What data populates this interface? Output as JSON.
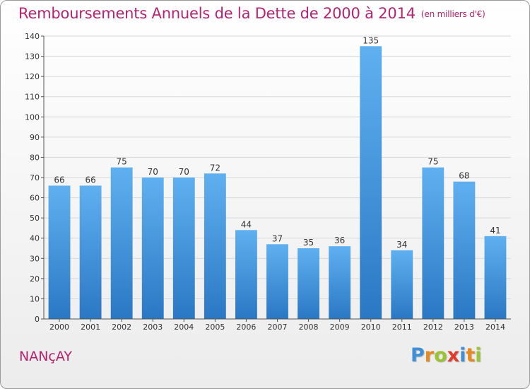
{
  "chart_data": {
    "type": "bar",
    "title": "Remboursements Annuels de la Dette de 2000 à 2014",
    "subtitle": "(en milliers d'€)",
    "categories": [
      "2000",
      "2001",
      "2002",
      "2003",
      "2004",
      "2005",
      "2006",
      "2007",
      "2008",
      "2009",
      "2010",
      "2011",
      "2012",
      "2013",
      "2014"
    ],
    "values": [
      66,
      66,
      75,
      70,
      70,
      72,
      44,
      37,
      35,
      36,
      135,
      34,
      75,
      68,
      41
    ],
    "ylim": [
      0,
      140
    ],
    "yticks": [
      0,
      10,
      20,
      30,
      40,
      50,
      60,
      70,
      80,
      90,
      100,
      110,
      120,
      130,
      140
    ],
    "grid": true,
    "bar_color": "#3a8fd9"
  },
  "footer": {
    "commune": "NANçAY",
    "logo_letters": [
      "P",
      "r",
      "o",
      "x",
      "i",
      "t",
      "i"
    ],
    "logo_colors": [
      "#3f8fd8",
      "#e8891e",
      "#9ac430",
      "#e23a2b",
      "#3f8fd8",
      "#e8891e",
      "#9ac430"
    ]
  }
}
